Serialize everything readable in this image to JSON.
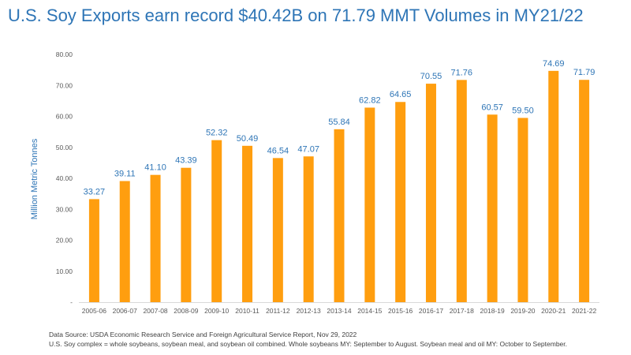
{
  "title": "U.S. Soy Exports earn record $40.42B on 71.79 MMT Volumes in MY21/22",
  "colors": {
    "title": "#2e75b6",
    "bar": "#ff9e0f",
    "data_label": "#2e75b6",
    "axis_label": "#2e75b6",
    "tick_text": "#595959",
    "axis_line": "#d9d9d9"
  },
  "chart_data": {
    "type": "bar",
    "categories": [
      "2005-06",
      "2006-07",
      "2007-08",
      "2008-09",
      "2009-10",
      "2010-11",
      "2011-12",
      "2012-13",
      "2013-14",
      "2014-15",
      "2015-16",
      "2016-17",
      "2017-18",
      "2018-19",
      "2019-20",
      "2020-21",
      "2021-22"
    ],
    "values": [
      33.27,
      39.11,
      41.1,
      43.39,
      52.32,
      50.49,
      46.54,
      47.07,
      55.84,
      62.82,
      64.65,
      70.55,
      71.76,
      60.57,
      59.5,
      74.69,
      71.79
    ],
    "data_labels": [
      "33.27",
      "39.11",
      "41.10",
      "43.39",
      "52.32",
      "50.49",
      "46.54",
      "47.07",
      "55.84",
      "62.82",
      "64.65",
      "70.55",
      "71.76",
      "60.57",
      "59.50",
      "74.69",
      "71.79"
    ],
    "ylabel": "Million Metric Tonnes",
    "ylim": [
      0,
      80
    ],
    "y_ticks": [
      "-",
      "10.00",
      "20.00",
      "30.00",
      "40.00",
      "50.00",
      "60.00",
      "70.00",
      "80.00"
    ],
    "grid": false
  },
  "footnotes": {
    "source": "Data Source: USDA Economic Research Service and Foreign Agricultural Service Report, Nov 29, 2022",
    "note": "U.S. Soy complex = whole soybeans, soybean meal, and soybean oil combined. Whole soybeans MY: September to August. Soybean meal and oil MY: October to September."
  }
}
